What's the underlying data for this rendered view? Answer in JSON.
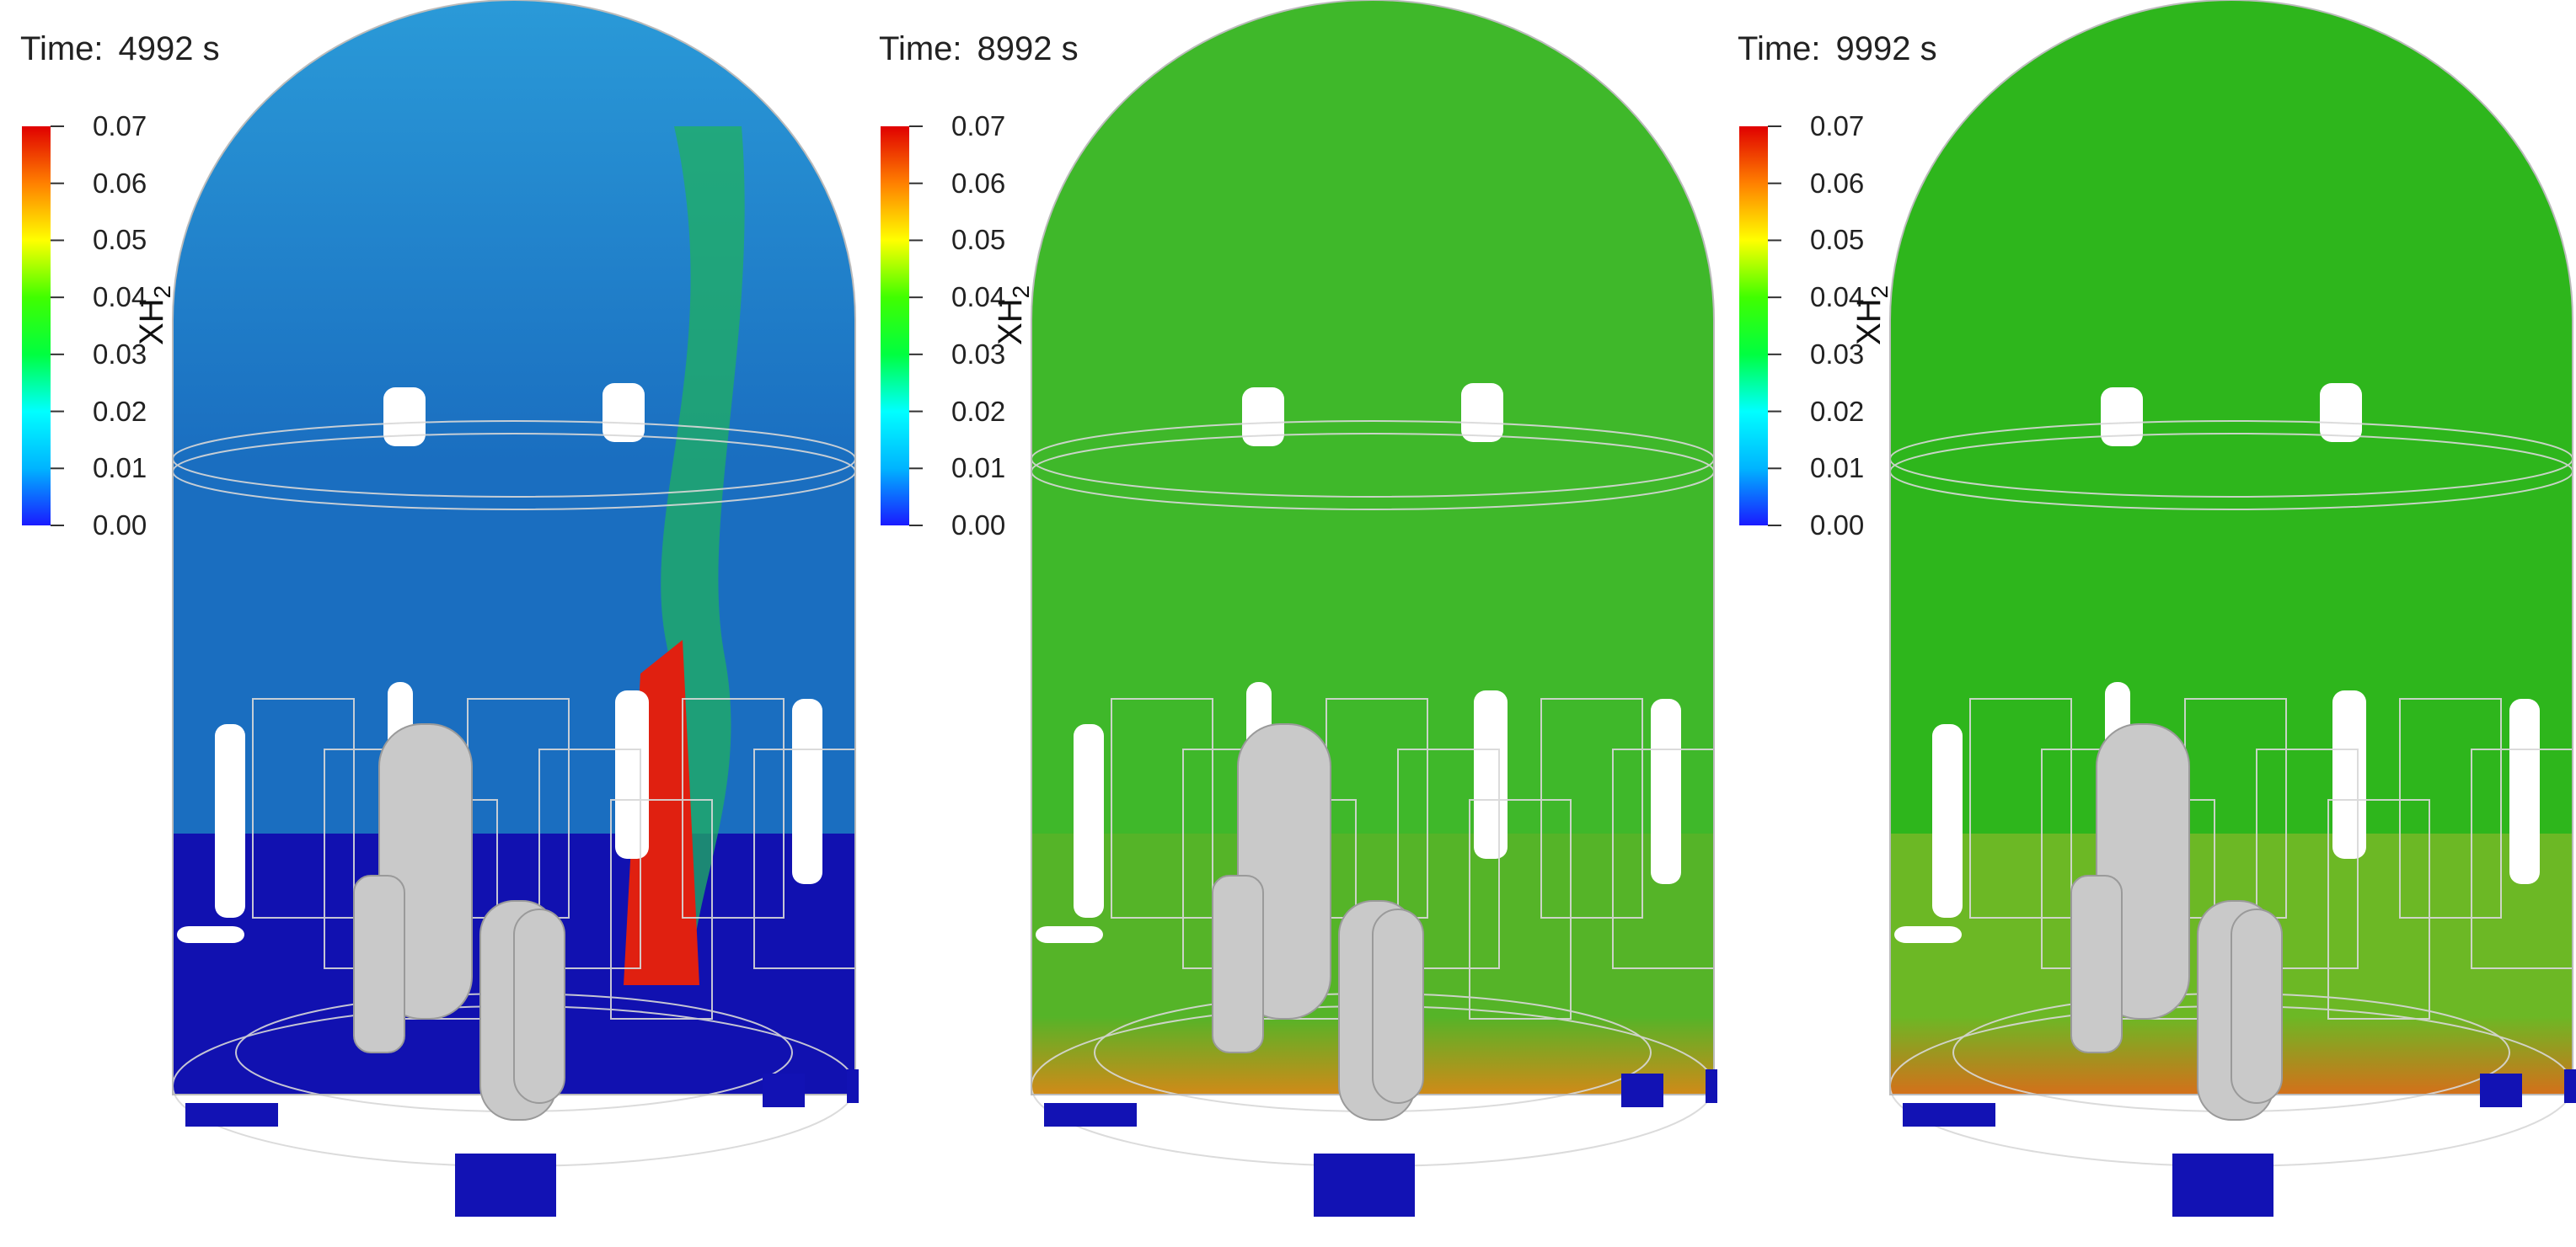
{
  "figure": {
    "panels": [
      {
        "time_prefix": "Time:",
        "time_value": "4992 s",
        "state": "early",
        "colors": {
          "dome": "#1a6ec0",
          "dome_top": "#2a9ad8",
          "lower": "#1111b0",
          "plume_low": "#20b060",
          "plume_hot": "#e02010",
          "floor_band": "#1111b0"
        }
      },
      {
        "time_prefix": "Time:",
        "time_value": "8992 s",
        "state": "mid",
        "colors": {
          "dome": "#3fb82a",
          "dome_top": "#3fb82a",
          "lower": "#55b428",
          "plume_low": "#3fb82a",
          "plume_hot": "#3fb82a",
          "floor_band": "#d08a18"
        }
      },
      {
        "time_prefix": "Time:",
        "time_value": "9992 s",
        "state": "late",
        "colors": {
          "dome": "#2eb61c",
          "dome_top": "#2eb61c",
          "lower": "#6cb825",
          "plume_low": "#2eb61c",
          "plume_hot": "#2eb61c",
          "floor_band": "#d4701a"
        }
      }
    ],
    "colorbar": {
      "title": "XH",
      "title_sub": "2",
      "ticks": [
        "0.07",
        "0.06",
        "0.05",
        "0.04",
        "0.03",
        "0.02",
        "0.01",
        "0.00"
      ],
      "range": [
        0.0,
        0.07
      ],
      "colormap": [
        "#1a1aff",
        "#00b4ff",
        "#00ffff",
        "#00ff40",
        "#40ff00",
        "#ffff00",
        "#ff8000",
        "#e00000"
      ]
    }
  }
}
